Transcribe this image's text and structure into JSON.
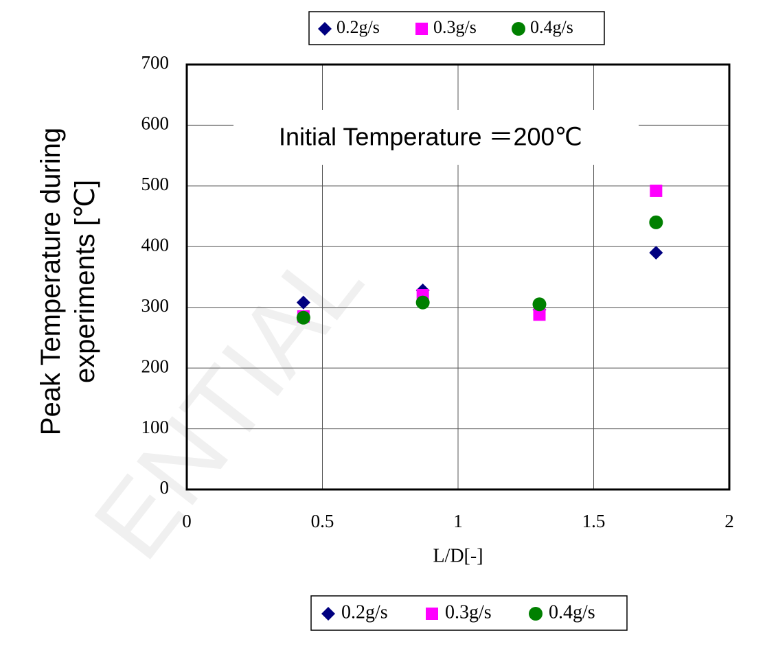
{
  "chart_data": {
    "type": "scatter",
    "annotation": "Initial Temperature ＝200℃",
    "watermark": "ENTIAL",
    "xlabel": "L/D[-]",
    "ylabel": [
      "Peak Temperature during",
      "experiments [℃]"
    ],
    "xlim": [
      0,
      2
    ],
    "xticks": [
      0,
      0.5,
      1,
      1.5,
      2
    ],
    "ylim": [
      0,
      700
    ],
    "yticks": [
      0,
      100,
      200,
      300,
      400,
      500,
      600,
      700
    ],
    "grid": true,
    "series": [
      {
        "name": "0.2g/s",
        "color": "#000080",
        "marker": "diamond",
        "x": [
          0.43,
          0.87,
          1.3,
          1.73
        ],
        "values": [
          308,
          328,
          296,
          390
        ]
      },
      {
        "name": "0.3g/s",
        "color": "#ff00ff",
        "marker": "square",
        "x": [
          0.43,
          0.87,
          1.3,
          1.73
        ],
        "values": [
          285,
          320,
          288,
          492
        ]
      },
      {
        "name": "0.4g/s",
        "color": "#008000",
        "marker": "circle",
        "x": [
          0.43,
          0.87,
          1.3,
          1.73
        ],
        "values": [
          283,
          308,
          305,
          440
        ]
      }
    ]
  }
}
